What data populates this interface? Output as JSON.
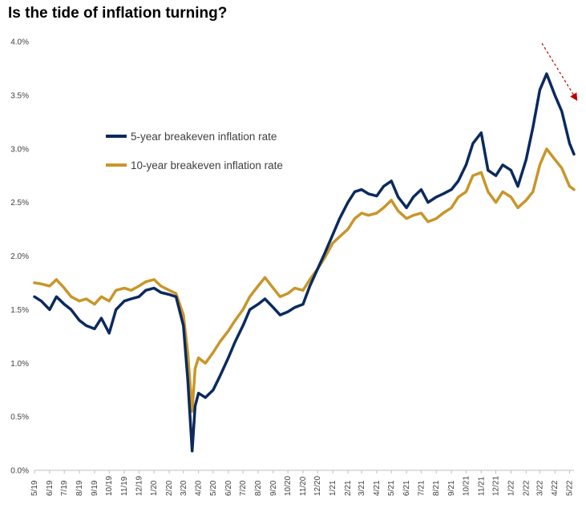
{
  "chart_data": {
    "type": "line",
    "title": "Is the tide of inflation turning?",
    "ylim": [
      0.0,
      4.0
    ],
    "yticks": [
      "0.0%",
      "0.5%",
      "1.0%",
      "1.5%",
      "2.0%",
      "2.5%",
      "3.0%",
      "3.5%",
      "4.0%"
    ],
    "xticks": [
      "5/19",
      "6/19",
      "7/19",
      "8/19",
      "9/19",
      "10/19",
      "11/19",
      "12/19",
      "1/20",
      "2/20",
      "3/20",
      "4/20",
      "5/20",
      "6/20",
      "7/20",
      "8/20",
      "9/20",
      "10/20",
      "11/20",
      "12/20",
      "1/21",
      "2/21",
      "3/21",
      "4/21",
      "5/21",
      "6/21",
      "7/21",
      "8/21",
      "9/21",
      "10/21",
      "11/21",
      "12/21",
      "1/22",
      "2/22",
      "3/22",
      "4/22",
      "5/22"
    ],
    "grid": false,
    "legend_position": "upper-left",
    "annotation": "dashed red arrow pointing down-right near the latest values",
    "series": [
      {
        "name": "5-year breakeven inflation rate",
        "color": "#0b2a5e",
        "x": [
          "2019-05-01",
          "2019-05-15",
          "2019-06-01",
          "2019-06-15",
          "2019-07-01",
          "2019-07-15",
          "2019-08-01",
          "2019-08-15",
          "2019-09-01",
          "2019-09-15",
          "2019-10-01",
          "2019-10-15",
          "2019-11-01",
          "2019-11-15",
          "2019-12-01",
          "2019-12-15",
          "2020-01-01",
          "2020-01-15",
          "2020-02-01",
          "2020-02-15",
          "2020-03-01",
          "2020-03-10",
          "2020-03-19",
          "2020-03-25",
          "2020-04-01",
          "2020-04-15",
          "2020-05-01",
          "2020-05-15",
          "2020-06-01",
          "2020-06-15",
          "2020-07-01",
          "2020-07-15",
          "2020-08-01",
          "2020-08-15",
          "2020-09-01",
          "2020-09-15",
          "2020-10-01",
          "2020-10-15",
          "2020-11-01",
          "2020-11-15",
          "2020-12-01",
          "2020-12-15",
          "2021-01-01",
          "2021-01-15",
          "2021-02-01",
          "2021-02-15",
          "2021-03-01",
          "2021-03-15",
          "2021-04-01",
          "2021-04-15",
          "2021-05-01",
          "2021-05-15",
          "2021-06-01",
          "2021-06-15",
          "2021-07-01",
          "2021-07-15",
          "2021-08-01",
          "2021-08-15",
          "2021-09-01",
          "2021-09-15",
          "2021-10-01",
          "2021-10-15",
          "2021-11-01",
          "2021-11-15",
          "2021-12-01",
          "2021-12-15",
          "2022-01-01",
          "2022-01-15",
          "2022-02-01",
          "2022-02-15",
          "2022-03-01",
          "2022-03-15",
          "2022-04-01",
          "2022-04-15",
          "2022-05-01",
          "2022-05-10"
        ],
        "y": [
          1.62,
          1.58,
          1.5,
          1.62,
          1.55,
          1.5,
          1.4,
          1.35,
          1.32,
          1.42,
          1.28,
          1.5,
          1.58,
          1.6,
          1.62,
          1.68,
          1.7,
          1.66,
          1.64,
          1.62,
          1.35,
          0.85,
          0.18,
          0.6,
          0.72,
          0.68,
          0.75,
          0.88,
          1.05,
          1.2,
          1.35,
          1.5,
          1.55,
          1.6,
          1.52,
          1.45,
          1.48,
          1.52,
          1.55,
          1.72,
          1.88,
          2.02,
          2.2,
          2.35,
          2.5,
          2.6,
          2.62,
          2.58,
          2.56,
          2.65,
          2.7,
          2.55,
          2.45,
          2.55,
          2.62,
          2.5,
          2.55,
          2.58,
          2.62,
          2.7,
          2.85,
          3.05,
          3.15,
          2.8,
          2.75,
          2.85,
          2.8,
          2.65,
          2.9,
          3.2,
          3.55,
          3.7,
          3.5,
          3.35,
          3.05,
          2.95
        ]
      },
      {
        "name": "10-year breakeven inflation rate",
        "color": "#c8962a",
        "x": [
          "2019-05-01",
          "2019-05-15",
          "2019-06-01",
          "2019-06-15",
          "2019-07-01",
          "2019-07-15",
          "2019-08-01",
          "2019-08-15",
          "2019-09-01",
          "2019-09-15",
          "2019-10-01",
          "2019-10-15",
          "2019-11-01",
          "2019-11-15",
          "2019-12-01",
          "2019-12-15",
          "2020-01-01",
          "2020-01-15",
          "2020-02-01",
          "2020-02-15",
          "2020-03-01",
          "2020-03-10",
          "2020-03-19",
          "2020-03-25",
          "2020-04-01",
          "2020-04-15",
          "2020-05-01",
          "2020-05-15",
          "2020-06-01",
          "2020-06-15",
          "2020-07-01",
          "2020-07-15",
          "2020-08-01",
          "2020-08-15",
          "2020-09-01",
          "2020-09-15",
          "2020-10-01",
          "2020-10-15",
          "2020-11-01",
          "2020-11-15",
          "2020-12-01",
          "2020-12-15",
          "2021-01-01",
          "2021-01-15",
          "2021-02-01",
          "2021-02-15",
          "2021-03-01",
          "2021-03-15",
          "2021-04-01",
          "2021-04-15",
          "2021-05-01",
          "2021-05-15",
          "2021-06-01",
          "2021-06-15",
          "2021-07-01",
          "2021-07-15",
          "2021-08-01",
          "2021-08-15",
          "2021-09-01",
          "2021-09-15",
          "2021-10-01",
          "2021-10-15",
          "2021-11-01",
          "2021-11-15",
          "2021-12-01",
          "2021-12-15",
          "2022-01-01",
          "2022-01-15",
          "2022-02-01",
          "2022-02-15",
          "2022-03-01",
          "2022-03-15",
          "2022-04-01",
          "2022-04-15",
          "2022-05-01",
          "2022-05-10"
        ],
        "y": [
          1.75,
          1.74,
          1.72,
          1.78,
          1.7,
          1.62,
          1.58,
          1.6,
          1.55,
          1.62,
          1.58,
          1.68,
          1.7,
          1.68,
          1.72,
          1.76,
          1.78,
          1.72,
          1.68,
          1.65,
          1.45,
          1.1,
          0.55,
          0.95,
          1.05,
          1.0,
          1.1,
          1.2,
          1.3,
          1.4,
          1.5,
          1.62,
          1.72,
          1.8,
          1.7,
          1.62,
          1.65,
          1.7,
          1.68,
          1.78,
          1.88,
          1.98,
          2.12,
          2.18,
          2.25,
          2.35,
          2.4,
          2.38,
          2.4,
          2.45,
          2.52,
          2.42,
          2.35,
          2.38,
          2.4,
          2.32,
          2.35,
          2.4,
          2.45,
          2.55,
          2.6,
          2.75,
          2.78,
          2.6,
          2.5,
          2.6,
          2.55,
          2.45,
          2.52,
          2.6,
          2.85,
          3.0,
          2.9,
          2.82,
          2.65,
          2.62
        ]
      }
    ]
  }
}
